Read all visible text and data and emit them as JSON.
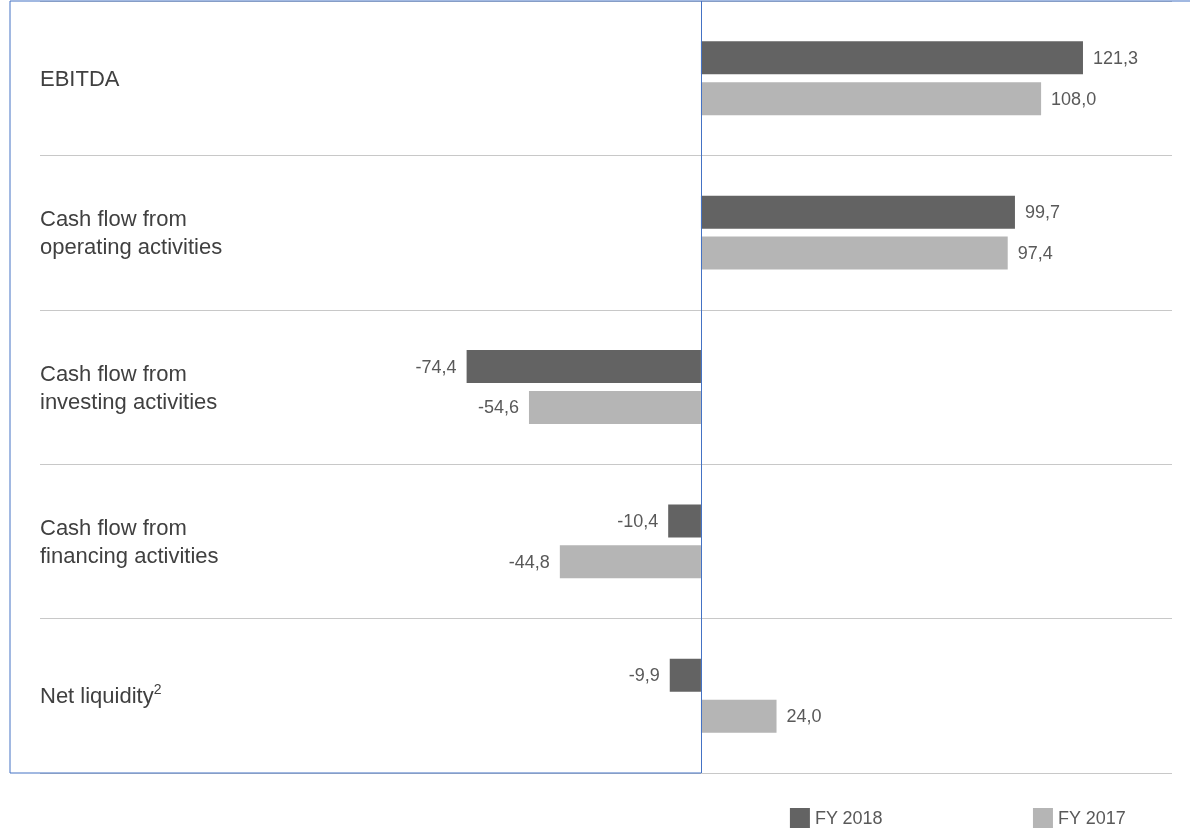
{
  "chart_data": {
    "type": "bar",
    "orientation": "horizontal",
    "categories": [
      "EBITDA",
      "Cash flow from operating activities",
      "Cash flow from investing activities",
      "Cash flow from financing activities",
      "Net liquidity$^{2}$"
    ],
    "series": [
      {
        "name": "FY 2018",
        "color": "#636363",
        "values": [
          121.3,
          99.7,
          -74.4,
          -10.4,
          -9.9
        ],
        "value_labels": [
          "121,3",
          "99,7",
          "-74,4",
          "-10,4",
          "-9,9"
        ]
      },
      {
        "name": "FY 2017",
        "color": "#b5b5b5",
        "values": [
          108.0,
          97.4,
          -54.6,
          -44.8,
          24.0
        ],
        "value_labels": [
          "108,0",
          "97,4",
          "-54,6",
          "-44,8",
          "24,0"
        ]
      }
    ],
    "ref_lines": [
      {
        "axis": "x",
        "value": 0,
        "color": "#4472c4"
      }
    ],
    "grid": "y",
    "legend": "bottom right"
  }
}
